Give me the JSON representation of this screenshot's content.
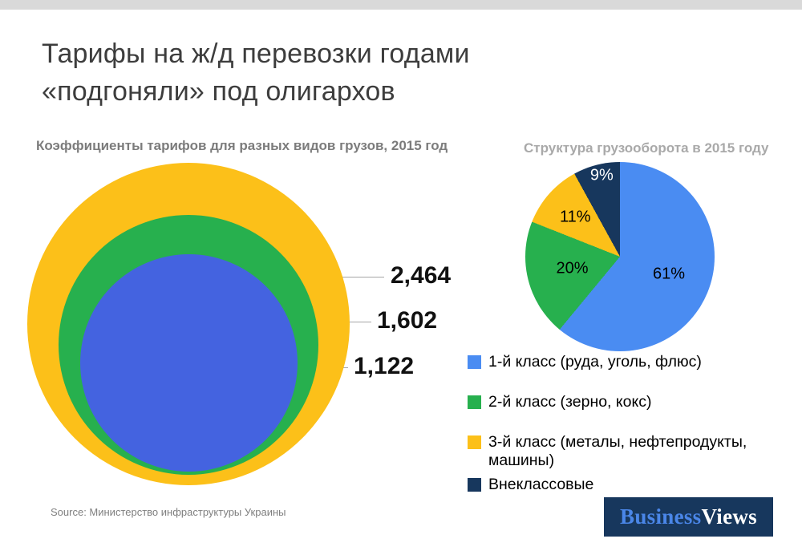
{
  "header": {
    "title_line1": "Тарифы на ж/д перевозки годами",
    "title_line2": "«подгоняли» под олигархов"
  },
  "footer": {
    "source": "Source: Министерство инфраструктуры Украины",
    "logo_part1": "Business",
    "logo_part2": "Views"
  },
  "colors": {
    "top_strip": "#d9d9d9",
    "title_text": "#3d3d3d",
    "subtitle_gray": "#7c7c7c",
    "subtitle_light_gray": "#a9a9a9",
    "accent_blue_bubble": "#4463e0",
    "accent_blue_pie": "#4a8cf2",
    "accent_green": "#27b04e",
    "accent_yellow": "#fcc019",
    "accent_navy": "#17375d",
    "logo_bg": "#17375d",
    "logo_business_color": "#4a86e8"
  },
  "chart_data": [
    {
      "type": "bubble",
      "title": "Коэффициенты тарифов для разных видов грузов, 2015 год",
      "note_scaling": "nested circles, area proportional to value, bottom-aligned",
      "series": [
        {
          "name": "3-й класс",
          "value": 2464,
          "display": "2,464",
          "color": "#fcc019"
        },
        {
          "name": "2-й класс",
          "value": 1602,
          "display": "1,602",
          "color": "#27b04e"
        },
        {
          "name": "1-й класс",
          "value": 1122,
          "display": "1,122",
          "color": "#4463e0"
        }
      ]
    },
    {
      "type": "pie",
      "title": "Структура грузооборота в 2015 году",
      "legend_position": "bottom-left",
      "slices": [
        {
          "label": "1-й класс (руда, уголь, флюс)",
          "value": 61,
          "display": "61%",
          "color": "#4a8cf2",
          "label_color": "#000000"
        },
        {
          "label": "2-й класс (зерно, кокс)",
          "value": 20,
          "display": "20%",
          "color": "#27b04e",
          "label_color": "#000000"
        },
        {
          "label": "3-й класс (металы, нефтепродукты, машины)",
          "value": 11,
          "display": "11%",
          "color": "#fcc019",
          "label_color": "#000000"
        },
        {
          "label": "Внеклассовые",
          "value": 9,
          "display": "9%",
          "color": "#17375d",
          "label_color": "#ffffff"
        }
      ]
    }
  ]
}
